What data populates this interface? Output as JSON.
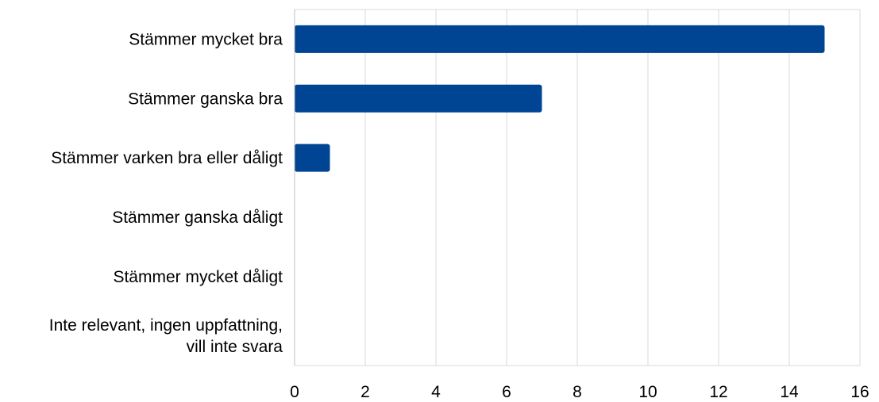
{
  "chart_data": {
    "type": "bar",
    "orientation": "horizontal",
    "title": "",
    "xlabel": "",
    "ylabel": "",
    "categories": [
      [
        "Stämmer mycket bra"
      ],
      [
        "Stämmer ganska bra"
      ],
      [
        "Stämmer varken bra eller dåligt"
      ],
      [
        "Stämmer ganska dåligt"
      ],
      [
        "Stämmer mycket dåligt"
      ],
      [
        "Inte relevant, ingen uppfattning,",
        "vill inte svara"
      ]
    ],
    "values": [
      15,
      7,
      1,
      0,
      0,
      0
    ],
    "xlim": [
      0,
      16
    ],
    "xticks": [
      "0",
      "2",
      "4",
      "6",
      "8",
      "10",
      "12",
      "14",
      "16"
    ],
    "grid": "vertical",
    "legend": "none",
    "colors": {
      "bar": "#004494",
      "grid": "#d9d9d9",
      "axis": "#bfbfbf"
    }
  }
}
